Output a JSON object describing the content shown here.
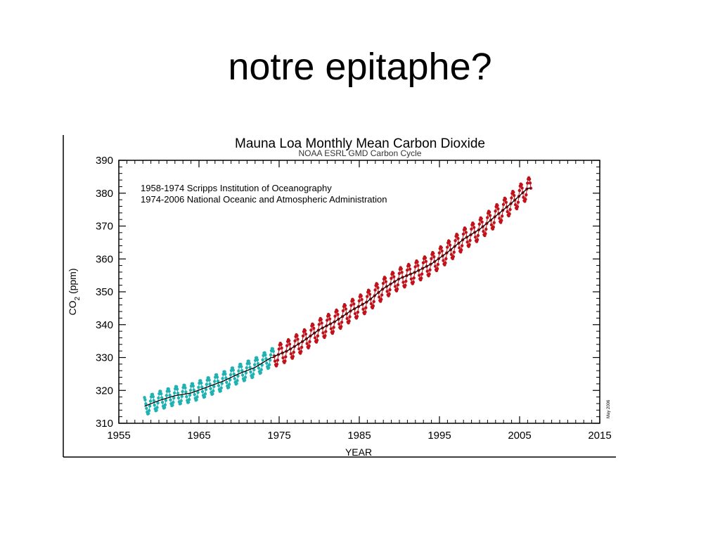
{
  "slide": {
    "title": "notre epitaphe?"
  },
  "chart_data": {
    "type": "scatter",
    "title": "Mauna Loa Monthly Mean Carbon Dioxide",
    "subtitle": "NOAA ESRL GMD Carbon Cycle",
    "xlabel": "YEAR",
    "ylabel": "CO2 (ppm)",
    "xlim": [
      1955,
      2015
    ],
    "ylim": [
      310,
      390
    ],
    "xticks": [
      1955,
      1965,
      1975,
      1985,
      1995,
      2005,
      2015
    ],
    "yticks": [
      310,
      320,
      330,
      340,
      350,
      360,
      370,
      380,
      390
    ],
    "legend_lines": [
      "1958-1974 Scripps Institution of Oceanography",
      "1974-2006 National Oceanic and Atmospheric Administration"
    ],
    "annotation": "May 2006",
    "grid": false,
    "colors": {
      "scripps": "#20b2b2",
      "noaa": "#c0121b",
      "trend": "#000000"
    },
    "series": [
      {
        "name": "1958-1974 Scripps Institution of Oceanography",
        "x_range": [
          1958.2,
          1974.4
        ],
        "seasonal_amplitude_ppm": 2.8,
        "trend_points": [
          [
            1958,
            315.0
          ],
          [
            1960,
            316.9
          ],
          [
            1962,
            318.4
          ],
          [
            1964,
            319.2
          ],
          [
            1966,
            321.0
          ],
          [
            1968,
            322.8
          ],
          [
            1970,
            325.1
          ],
          [
            1972,
            327.0
          ],
          [
            1974,
            330.0
          ]
        ]
      },
      {
        "name": "1974-2006 National Oceanic and Atmospheric Administration",
        "x_range": [
          1974.4,
          2006.4
        ],
        "seasonal_amplitude_ppm": 3.2,
        "trend_points": [
          [
            1974,
            330.0
          ],
          [
            1976,
            332.0
          ],
          [
            1978,
            335.0
          ],
          [
            1980,
            338.5
          ],
          [
            1982,
            341.0
          ],
          [
            1984,
            344.3
          ],
          [
            1986,
            347.0
          ],
          [
            1988,
            351.0
          ],
          [
            1990,
            354.0
          ],
          [
            1992,
            356.0
          ],
          [
            1994,
            358.5
          ],
          [
            1996,
            362.0
          ],
          [
            1998,
            366.0
          ],
          [
            2000,
            369.0
          ],
          [
            2002,
            373.0
          ],
          [
            2004,
            377.0
          ],
          [
            2006,
            381.5
          ]
        ]
      }
    ]
  }
}
